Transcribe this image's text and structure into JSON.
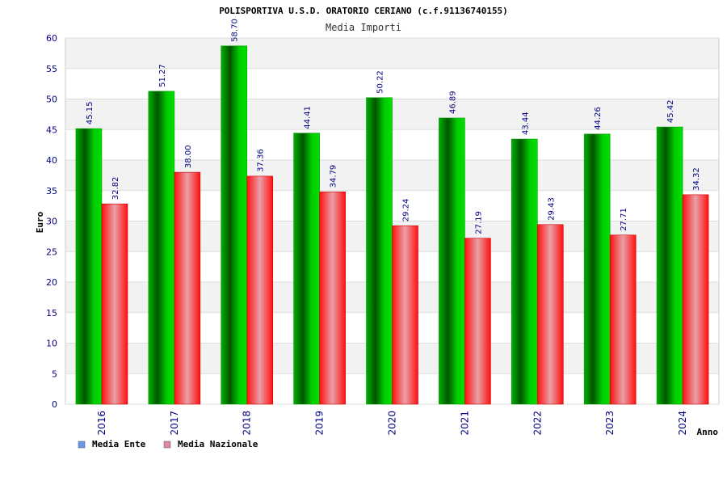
{
  "chart_data": {
    "type": "bar",
    "title": "POLISPORTIVA U.S.D. ORATORIO CERIANO (c.f.91136740155)",
    "subtitle": "Media Importi",
    "xlabel": "Anno",
    "ylabel": "Euro",
    "ylim": [
      0,
      60
    ],
    "yticks": [
      0,
      5,
      10,
      15,
      20,
      25,
      30,
      35,
      40,
      45,
      50,
      55,
      60
    ],
    "grid": true,
    "legend_position": "bottom-left",
    "categories": [
      "2016",
      "2017",
      "2018",
      "2019",
      "2020",
      "2021",
      "2022",
      "2023",
      "2024"
    ],
    "series": [
      {
        "name": "Media Ente",
        "legend_color": "#6699ee",
        "bar_color": "#00cc00",
        "values": [
          45.15,
          51.27,
          58.7,
          44.41,
          50.22,
          46.89,
          43.44,
          44.26,
          45.42
        ],
        "value_labels": [
          "45.15",
          "51.27",
          "58.70",
          "44.41",
          "50.22",
          "46.89",
          "43.44",
          "44.26",
          "45.42"
        ]
      },
      {
        "name": "Media Nazionale",
        "legend_color": "#dd88aa",
        "bar_color": "#ee2222",
        "values": [
          32.82,
          38.0,
          37.36,
          34.79,
          29.24,
          27.19,
          29.43,
          27.71,
          34.32
        ],
        "value_labels": [
          "32.82",
          "38.00",
          "37.36",
          "34.79",
          "29.24",
          "27.19",
          "29.43",
          "27.71",
          "34.32"
        ]
      }
    ]
  }
}
